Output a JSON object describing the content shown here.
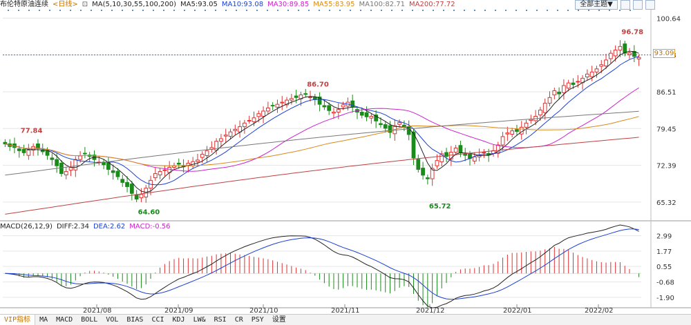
{
  "header": {
    "instrument": "布伦特原油连续",
    "period": "<日线>",
    "ma_params": "MA(5,10,30,55,100,200)",
    "ma": [
      {
        "label": "MA5:93.05",
        "color": "#222222"
      },
      {
        "label": "MA10:93.08",
        "color": "#1a3fd6"
      },
      {
        "label": "MA30:89.85",
        "color": "#cc22cc"
      },
      {
        "label": "MA55:83.95",
        "color": "#d98a1a"
      },
      {
        "label": "MA100:82.71",
        "color": "#777777"
      },
      {
        "label": "MA200:77.72",
        "color": "#c04040"
      }
    ],
    "theme_button": "全部主题▼"
  },
  "price_axis": [
    "100.64",
    "93.58",
    "86.51",
    "79.45",
    "72.39",
    "65.32"
  ],
  "last_price": "93.09",
  "macd_header": {
    "params": "MACD(26,12,9)",
    "diff": "DIFF:2.34",
    "dea": "DEA:2.62",
    "macd": "MACD:-0.56",
    "macd_color": "#cc22cc"
  },
  "macd_axis": [
    "2.99",
    "1.77",
    "0.55",
    "-0.68",
    "-1.90"
  ],
  "date_labels": [
    "2021/08",
    "2021/09",
    "2021/10",
    "2021/11",
    "2021/12",
    "2022/01",
    "2022/02"
  ],
  "tabs": [
    "VIP指标",
    "MA",
    "MACD",
    "BOLL",
    "VOL",
    "BIAS",
    "CCI",
    "KDJ",
    "LW&",
    "RSI",
    "CR",
    "PSY",
    "设置"
  ],
  "colors": {
    "up": "#e03030",
    "down": "#1a8a1a",
    "grid": "#e6e6e6"
  },
  "chart_data": {
    "type": "candlestick",
    "title": "布伦特原油连续 <日线>",
    "ylim": [
      62.0,
      102.0
    ],
    "annotations": [
      {
        "label": "77.84",
        "value": 77.84,
        "date": "2021/07"
      },
      {
        "label": "64.60",
        "value": 64.6,
        "date": "2021/08"
      },
      {
        "label": "86.70",
        "value": 86.7,
        "date": "2021/10"
      },
      {
        "label": "65.72",
        "value": 65.72,
        "date": "2021/12"
      },
      {
        "label": "96.78",
        "value": 96.78,
        "date": "2022/02"
      }
    ],
    "close_series": [
      76.5,
      76.0,
      75.8,
      75.2,
      74.8,
      75.3,
      76.0,
      75.6,
      75.0,
      74.3,
      73.5,
      72.3,
      70.8,
      71.2,
      72.0,
      73.5,
      74.2,
      74.6,
      74.1,
      73.5,
      73.0,
      72.5,
      71.6,
      71.0,
      70.2,
      69.1,
      68.3,
      67.0,
      65.9,
      66.8,
      68.0,
      69.5,
      70.8,
      71.2,
      71.5,
      72.0,
      72.3,
      72.6,
      72.1,
      72.8,
      73.1,
      73.4,
      74.5,
      75.2,
      75.8,
      77.0,
      77.5,
      78.2,
      78.8,
      79.3,
      79.8,
      80.5,
      81.0,
      81.5,
      82.3,
      82.8,
      83.4,
      83.8,
      84.1,
      84.5,
      84.9,
      85.2,
      85.4,
      85.9,
      86.0,
      85.5,
      85.0,
      84.1,
      83.6,
      82.9,
      82.6,
      83.1,
      84.0,
      84.5,
      83.6,
      82.6,
      82.0,
      81.7,
      81.8,
      80.9,
      80.2,
      79.5,
      78.7,
      80.0,
      80.6,
      79.8,
      78.3,
      73.8,
      71.6,
      70.5,
      69.8,
      71.8,
      73.3,
      74.6,
      74.1,
      74.9,
      75.7,
      74.8,
      74.3,
      73.7,
      74.0,
      74.4,
      74.9,
      74.4,
      75.2,
      76.3,
      77.9,
      78.6,
      79.0,
      78.9,
      79.7,
      80.5,
      81.2,
      81.8,
      83.0,
      84.3,
      85.4,
      86.7,
      86.1,
      87.7,
      88.2,
      87.9,
      88.5,
      89.1,
      89.9,
      90.3,
      90.9,
      91.7,
      92.6,
      93.9,
      94.5,
      95.2,
      93.9,
      94.0,
      93.3,
      93.09
    ],
    "close_dates": [
      "2021/07",
      "2022/02"
    ],
    "series": [
      {
        "name": "MA5",
        "last": 93.05
      },
      {
        "name": "MA10",
        "last": 93.08
      },
      {
        "name": "MA30",
        "last": 89.85
      },
      {
        "name": "MA55",
        "last": 83.95
      },
      {
        "name": "MA100",
        "last": 82.71
      },
      {
        "name": "MA200",
        "last": 77.72
      }
    ],
    "macd": {
      "ylim": [
        -2.4,
        3.3
      ],
      "diff_last": 2.34,
      "dea_last": 2.62,
      "macd_last": -0.56
    }
  }
}
